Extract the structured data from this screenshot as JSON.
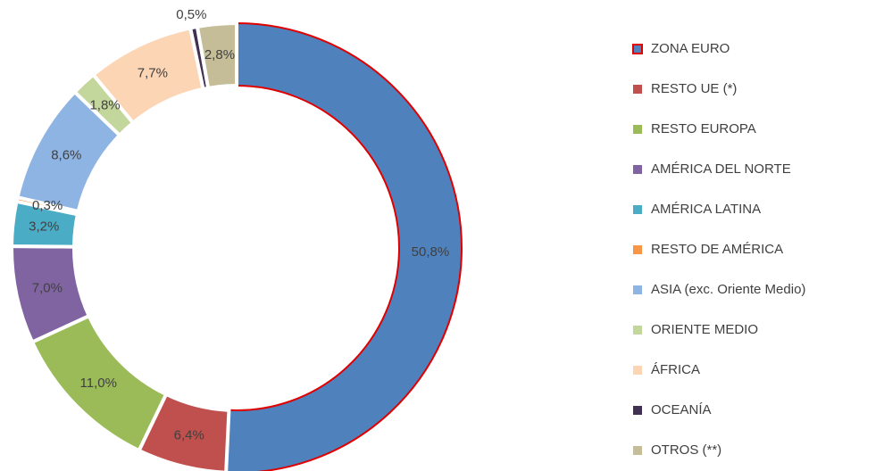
{
  "chart_data": {
    "type": "pie",
    "categories": [
      "ZONA EURO",
      "RESTO UE (*)",
      "RESTO EUROPA",
      "AMÉRICA DEL NORTE",
      "AMÉRICA LATINA",
      "RESTO DE AMÉRICA",
      "ASIA (exc. Oriente Medio)",
      "ORIENTE MEDIO",
      "ÁFRICA",
      "OCEANÍA",
      "OTROS (**)"
    ],
    "values": [
      50.8,
      6.4,
      11.0,
      7.0,
      3.2,
      0.3,
      8.6,
      1.8,
      7.7,
      0.5,
      2.8
    ],
    "value_labels": [
      "50,8%",
      "6,4%",
      "11,0%",
      "7,0%",
      "3,2%",
      "0,3%",
      "8,6%",
      "1,8%",
      "7,7%",
      "0,5%",
      "2,8%"
    ],
    "colors": [
      "#4f81bd",
      "#c0504d",
      "#9bbb59",
      "#8064a2",
      "#4bacc6",
      "#f79646",
      "#8eb4e3",
      "#c3d69b",
      "#fcd5b5",
      "#403152",
      "#c4bd97"
    ],
    "highlight": 0,
    "legend": "right"
  }
}
